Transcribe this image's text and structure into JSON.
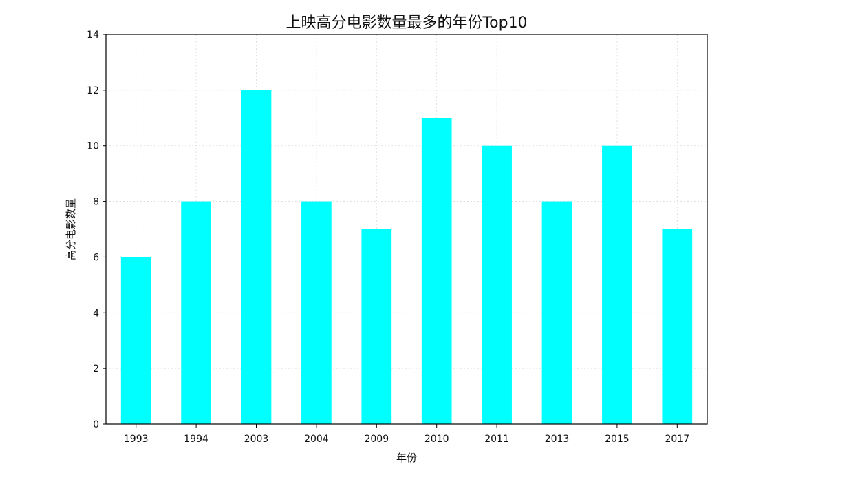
{
  "chart_data": {
    "type": "bar",
    "title": "上映高分电影数量最多的年份Top10",
    "xlabel": "年份",
    "ylabel": "高分电影数量",
    "categories": [
      "1993",
      "1994",
      "2003",
      "2004",
      "2009",
      "2010",
      "2011",
      "2013",
      "2015",
      "2017"
    ],
    "values": [
      6,
      8,
      12,
      8,
      7,
      11,
      10,
      8,
      10,
      7
    ],
    "ylim": [
      0,
      14
    ],
    "yticks": [
      0,
      2,
      4,
      6,
      8,
      10,
      12,
      14
    ],
    "grid": true,
    "legend": false,
    "colors": {
      "bar": "#00ffff",
      "axis": "#000000",
      "grid": "#d9d9d9"
    }
  }
}
